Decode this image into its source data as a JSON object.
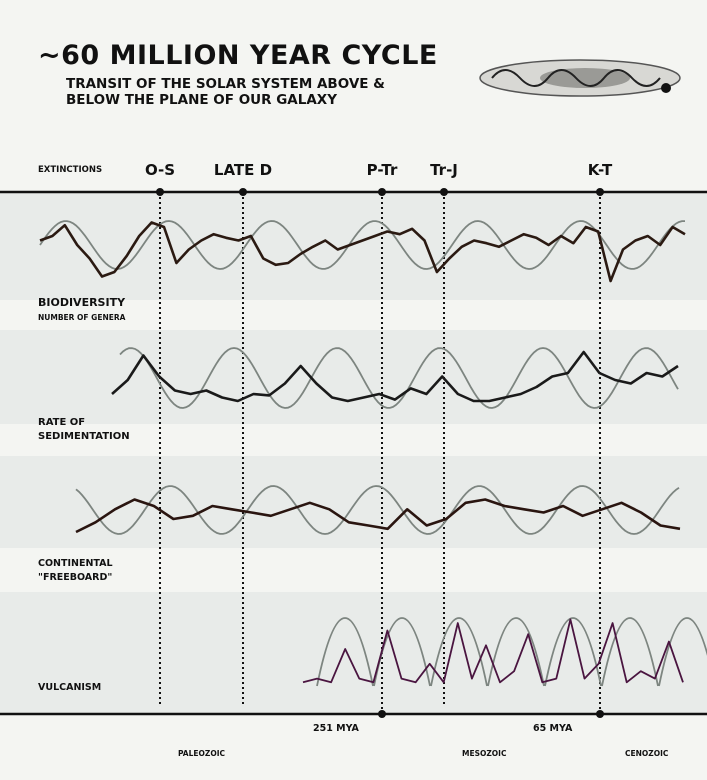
{
  "header": {
    "title": "~60 MILLION YEAR CYCLE",
    "subtitle_line1": "TRANSIT OF THE SOLAR SYSTEM ABOVE &",
    "subtitle_line2": "BELOW THE PLANE OF OUR GALAXY",
    "galaxy_icon": "galaxy-disk-icon"
  },
  "chart_data": {
    "type": "line",
    "row_labels": {
      "extinctions": "EXTINCTIONS",
      "biodiversity_1": "BIODIVERSITY",
      "biodiversity_2": "NUMBER OF GENERA",
      "sedimentation_1": "RATE OF",
      "sedimentation_2": "SEDIMENTATION",
      "freeboard_1": "CONTINENTAL",
      "freeboard_2": "\"FREEBOARD\"",
      "volcanism": "VULCANISM"
    },
    "events": [
      "O-S",
      "LATE D",
      "P-Tr",
      "Tr-J",
      "K-T"
    ],
    "time_markers": [
      "251 MYA",
      "65 MYA"
    ],
    "eras": [
      "PALEOZOIC",
      "MESOZOIC",
      "CENOZOIC"
    ],
    "series": [
      {
        "name": "BIODIVERSITY",
        "values": [
          0.55,
          0.6,
          0.72,
          0.5,
          0.35,
          0.15,
          0.2,
          0.38,
          0.6,
          0.75,
          0.7,
          0.3,
          0.45,
          0.55,
          0.62,
          0.58,
          0.55,
          0.6,
          0.35,
          0.28,
          0.3,
          0.4,
          0.48,
          0.55,
          0.45,
          0.5,
          0.55,
          0.6,
          0.65,
          0.62,
          0.68,
          0.55,
          0.2,
          0.35,
          0.48,
          0.55,
          0.52,
          0.48,
          0.55,
          0.62,
          0.58,
          0.5,
          0.6,
          0.52,
          0.7,
          0.65,
          0.1,
          0.45,
          0.55,
          0.6,
          0.5,
          0.7,
          0.62
        ]
      },
      {
        "name": "RATE OF SEDIMENTATION",
        "values": [
          0.3,
          0.5,
          0.85,
          0.55,
          0.35,
          0.3,
          0.35,
          0.25,
          0.2,
          0.3,
          0.28,
          0.45,
          0.7,
          0.45,
          0.25,
          0.2,
          0.25,
          0.3,
          0.22,
          0.38,
          0.3,
          0.55,
          0.3,
          0.2,
          0.2,
          0.25,
          0.3,
          0.4,
          0.55,
          0.6,
          0.9,
          0.6,
          0.5,
          0.45,
          0.6,
          0.55,
          0.7
        ]
      },
      {
        "name": "CONTINENTAL FREEBOARD",
        "values": [
          0.2,
          0.35,
          0.55,
          0.7,
          0.6,
          0.4,
          0.45,
          0.6,
          0.55,
          0.5,
          0.45,
          0.55,
          0.65,
          0.55,
          0.35,
          0.3,
          0.25,
          0.55,
          0.3,
          0.4,
          0.65,
          0.7,
          0.6,
          0.55,
          0.5,
          0.6,
          0.45,
          0.55,
          0.65,
          0.5,
          0.3,
          0.25
        ]
      },
      {
        "name": "VULCANISM",
        "values": [
          0.05,
          0.1,
          0.05,
          0.5,
          0.1,
          0.05,
          0.75,
          0.1,
          0.05,
          0.3,
          0.05,
          0.85,
          0.1,
          0.55,
          0.05,
          0.2,
          0.7,
          0.05,
          0.1,
          0.9,
          0.1,
          0.3,
          0.85,
          0.05,
          0.2,
          0.1,
          0.6,
          0.05
        ]
      }
    ],
    "cycle_period_myr": 60,
    "grid": false
  }
}
